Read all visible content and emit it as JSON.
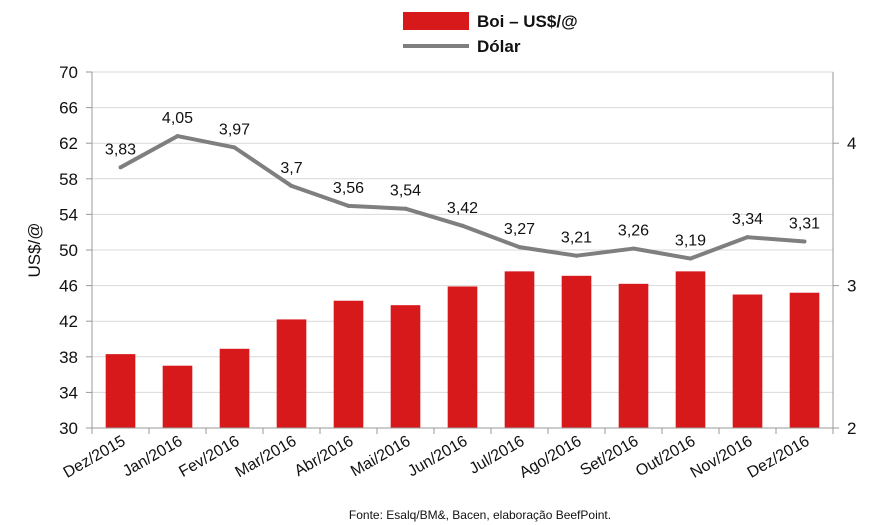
{
  "chart_data": {
    "type": "bar",
    "categories": [
      "Dez/2015",
      "Jan/2016",
      "Fev/2016",
      "Mar/2016",
      "Abr/2016",
      "Mai/2016",
      "Jun/2016",
      "Jul/2016",
      "Ago/2016",
      "Set/2016",
      "Out/2016",
      "Nov/2016",
      "Dez/2016"
    ],
    "series": [
      {
        "name": "Boi – US$/@",
        "type": "bar",
        "axis": "left",
        "color": "#d7191c",
        "values": [
          38.3,
          37.0,
          38.9,
          42.2,
          44.3,
          43.8,
          45.9,
          47.6,
          47.1,
          46.2,
          47.6,
          45.0,
          45.2
        ]
      },
      {
        "name": "Dólar",
        "type": "line",
        "axis": "right",
        "color": "#7f7f7f",
        "values": [
          3.83,
          4.05,
          3.97,
          3.7,
          3.56,
          3.54,
          3.42,
          3.27,
          3.21,
          3.26,
          3.19,
          3.34,
          3.31
        ],
        "labels": [
          "3,83",
          "4,05",
          "3,97",
          "3,7",
          "3,56",
          "3,54",
          "3,42",
          "3,27",
          "3,21",
          "3,26",
          "3,19",
          "3,34",
          "3,31"
        ]
      }
    ],
    "ylabel": "US$/@",
    "ylim": [
      30,
      70
    ],
    "yticks": [
      30,
      34,
      38,
      42,
      46,
      50,
      54,
      58,
      62,
      66,
      70
    ],
    "y2lim": [
      2,
      4.5
    ],
    "y2ticks": [
      2,
      3,
      4
    ],
    "grid": "horizontal",
    "legend": "top-center",
    "source": "Fonte: Esalq/BM&, Bacen, elaboração BeefPoint."
  }
}
